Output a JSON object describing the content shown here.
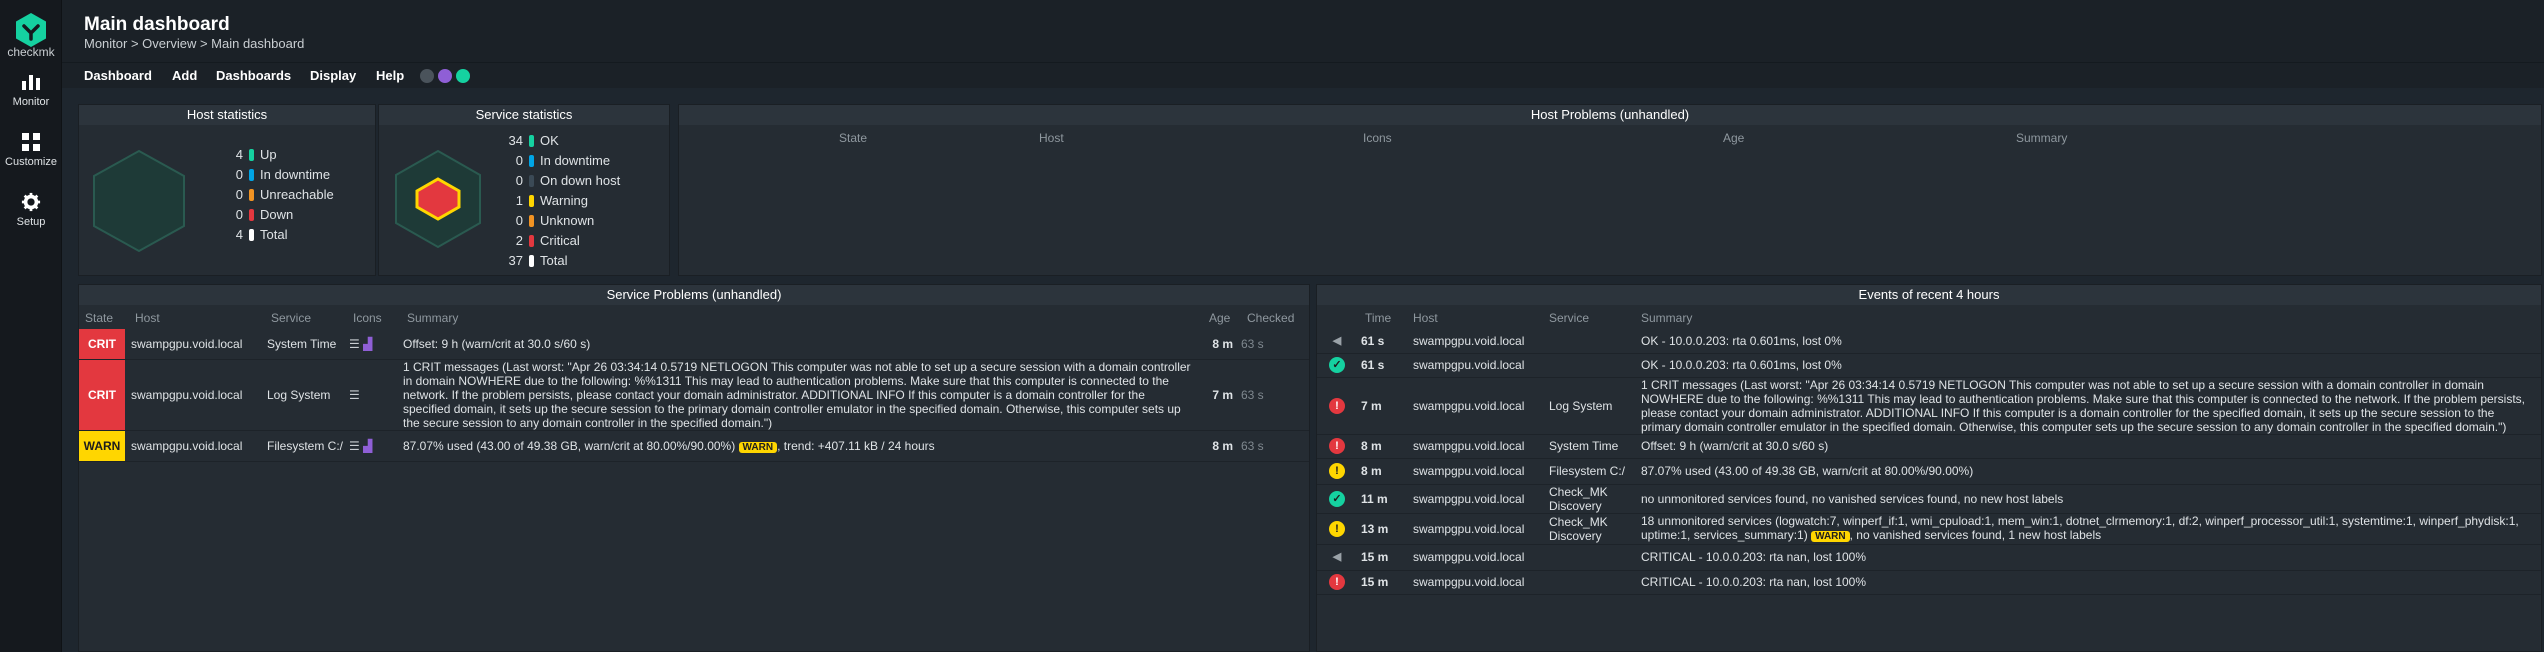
{
  "sidebar": {
    "logo_text": "checkmk",
    "items": [
      {
        "label": "Monitor"
      },
      {
        "label": "Customize"
      },
      {
        "label": "Setup"
      }
    ]
  },
  "header": {
    "title": "Main dashboard",
    "breadcrumb": "Monitor > Overview > Main dashboard"
  },
  "menu": [
    "Dashboard",
    "Add",
    "Dashboards",
    "Display",
    "Help"
  ],
  "host_stats": {
    "title": "Host statistics",
    "items": [
      {
        "num": "4",
        "label": "Up",
        "color": "#15d1a0"
      },
      {
        "num": "0",
        "label": "In downtime",
        "color": "#00a5e6"
      },
      {
        "num": "0",
        "label": "Unreachable",
        "color": "#f19323"
      },
      {
        "num": "0",
        "label": "Down",
        "color": "#e3383f"
      },
      {
        "num": "4",
        "label": "Total",
        "color": "#ffffff"
      }
    ]
  },
  "service_stats": {
    "title": "Service statistics",
    "items": [
      {
        "num": "34",
        "label": "OK",
        "color": "#15d1a0"
      },
      {
        "num": "0",
        "label": "In downtime",
        "color": "#00a5e6"
      },
      {
        "num": "0",
        "label": "On down host",
        "color": "#3b4a56"
      },
      {
        "num": "1",
        "label": "Warning",
        "color": "#ffd600"
      },
      {
        "num": "0",
        "label": "Unknown",
        "color": "#f19323"
      },
      {
        "num": "2",
        "label": "Critical",
        "color": "#e3383f"
      },
      {
        "num": "37",
        "label": "Total",
        "color": "#ffffff"
      }
    ]
  },
  "host_problems": {
    "title": "Host Problems (unhandled)",
    "headers": [
      "State",
      "Host",
      "Icons",
      "Age",
      "Summary"
    ]
  },
  "service_problems": {
    "title": "Service Problems (unhandled)",
    "headers": [
      "State",
      "Host",
      "Service",
      "Icons",
      "Summary",
      "Age",
      "Checked"
    ],
    "rows": [
      {
        "state": "CRIT",
        "host": "swampgpu.void.local",
        "service": "System Time",
        "summary": "Offset: 9 h (warn/crit at 30.0 s/60 s)",
        "summary_tag": "",
        "summary_after": "",
        "age": "8 m",
        "checked": "63 s"
      },
      {
        "state": "CRIT",
        "host": "swampgpu.void.local",
        "service": "Log System",
        "summary": "1 CRIT messages (Last worst: \"Apr 26 03:34:14 0.5719 NETLOGON This computer was not able to set up a secure session with a domain controller in domain NOWHERE due to the following: %%1311 This may lead to authentication problems. Make sure that this computer is connected to the network. If the problem persists, please contact your domain administrator. ADDITIONAL INFO If this computer is a domain controller for the specified domain, it sets up the secure session to the primary domain controller emulator in the specified domain. Otherwise, this computer sets up the secure session to any domain controller in the specified domain.\")",
        "summary_tag": "",
        "summary_after": "",
        "age": "7 m",
        "checked": "63 s"
      },
      {
        "state": "WARN",
        "host": "swampgpu.void.local",
        "service": "Filesystem C:/",
        "summary": "87.07% used (43.00 of 49.38 GB, warn/crit at 80.00%/90.00%)",
        "summary_tag": "WARN",
        "summary_after": ", trend: +407.11 kB / 24 hours",
        "age": "8 m",
        "checked": "63 s"
      }
    ]
  },
  "events": {
    "title": "Events of recent 4 hours",
    "headers": [
      "Time",
      "Host",
      "Service",
      "Summary"
    ],
    "rows": [
      {
        "icon": "speaker-icon",
        "time": "61 s",
        "host": "swampgpu.void.local",
        "service": "",
        "summary": "OK - 10.0.0.203: rta 0.601ms, lost 0%",
        "tag": "",
        "after": ""
      },
      {
        "icon": "ok-icon",
        "time": "61 s",
        "host": "swampgpu.void.local",
        "service": "",
        "summary": "OK - 10.0.0.203: rta 0.601ms, lost 0%",
        "tag": "",
        "after": ""
      },
      {
        "icon": "crit-icon",
        "time": "7 m",
        "host": "swampgpu.void.local",
        "service": "Log System",
        "summary": "1 CRIT messages (Last worst: \"Apr 26 03:34:14 0.5719 NETLOGON This computer was not able to set up a secure session with a domain controller in domain NOWHERE due to the following: %%1311 This may lead to authentication problems. Make sure that this computer is connected to the network. If the problem persists, please contact your domain administrator. ADDITIONAL INFO If this computer is a domain controller for the specified domain, it sets up the secure session to the primary domain controller emulator in the specified domain. Otherwise, this computer sets up the secure session to any domain controller in the specified domain.\")",
        "tag": "",
        "after": ""
      },
      {
        "icon": "crit-icon",
        "time": "8 m",
        "host": "swampgpu.void.local",
        "service": "System Time",
        "summary": "Offset: 9 h (warn/crit at 30.0 s/60 s)",
        "tag": "",
        "after": ""
      },
      {
        "icon": "warn-icon",
        "time": "8 m",
        "host": "swampgpu.void.local",
        "service": "Filesystem C:/",
        "summary": "87.07% used (43.00 of 49.38 GB, warn/crit at 80.00%/90.00%)",
        "tag": "",
        "after": ""
      },
      {
        "icon": "ok-icon",
        "time": "11 m",
        "host": "swampgpu.void.local",
        "service": "Check_MK Discovery",
        "summary": "no unmonitored services found, no vanished services found, no new host labels",
        "tag": "",
        "after": ""
      },
      {
        "icon": "warn-icon",
        "time": "13 m",
        "host": "swampgpu.void.local",
        "service": "Check_MK Discovery",
        "summary": "18 unmonitored services (logwatch:7, winperf_if:1, wmi_cpuload:1, mem_win:1, dotnet_clrmemory:1, df:2, winperf_processor_util:1, systemtime:1, winperf_phydisk:1, uptime:1, services_summary:1)",
        "tag": "WARN",
        "after": ", no vanished services found, 1 new host labels"
      },
      {
        "icon": "speaker-icon",
        "time": "15 m",
        "host": "swampgpu.void.local",
        "service": "",
        "summary": "CRITICAL - 10.0.0.203: rta nan, lost 100%",
        "tag": "",
        "after": ""
      },
      {
        "icon": "crit-icon",
        "time": "15 m",
        "host": "swampgpu.void.local",
        "service": "",
        "summary": "CRITICAL - 10.0.0.203: rta nan, lost 100%",
        "tag": "",
        "after": ""
      }
    ]
  }
}
